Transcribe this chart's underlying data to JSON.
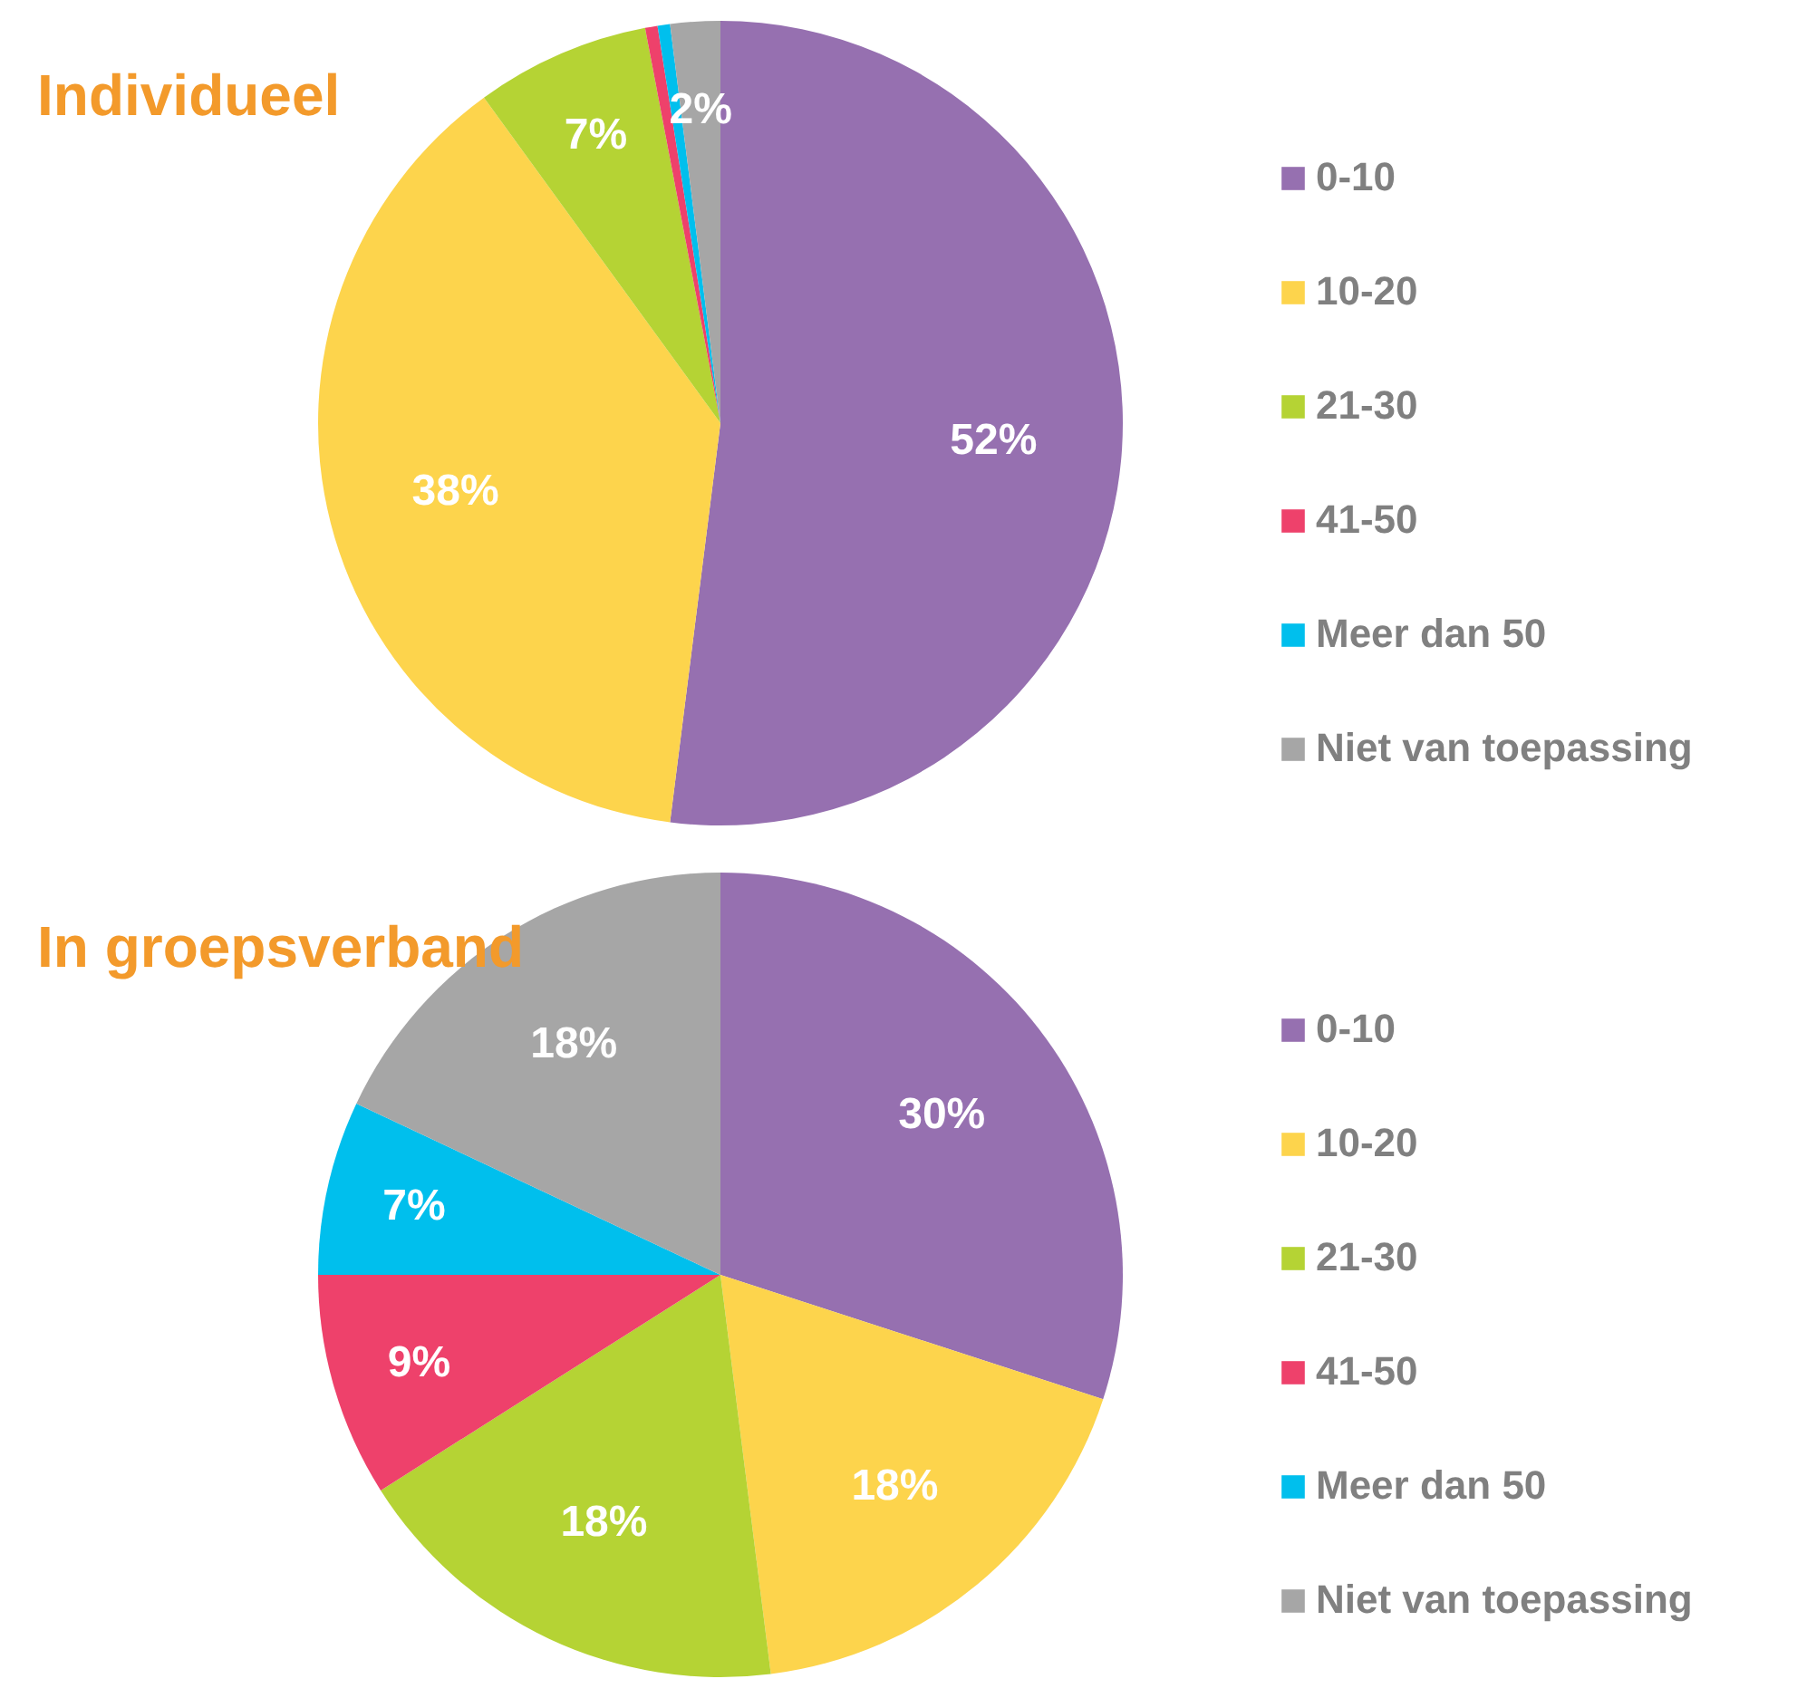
{
  "chart_data": [
    {
      "type": "pie",
      "title": "Individueel",
      "categories": [
        "0-10",
        "10-20",
        "21-30",
        "41-50",
        "Meer dan 50",
        "Niet van toepassing"
      ],
      "values": [
        52,
        38,
        7,
        0.5,
        0.5,
        2
      ],
      "value_labels": [
        "52%",
        "38%",
        "7%",
        null,
        null,
        "2%"
      ],
      "colors": [
        "#9670b0",
        "#fdd44c",
        "#b5d334",
        "#ee416b",
        "#00bfed",
        "#a6a6a6"
      ],
      "legend": "right"
    },
    {
      "type": "pie",
      "title": "In groepsverband",
      "categories": [
        "0-10",
        "10-20",
        "21-30",
        "41-50",
        "Meer dan 50",
        "Niet van toepassing"
      ],
      "values": [
        30,
        18,
        18,
        9,
        7,
        18
      ],
      "value_labels": [
        "30%",
        "18%",
        "18%",
        "9%",
        "7%",
        "18%"
      ],
      "colors": [
        "#9670b0",
        "#fdd44c",
        "#b5d334",
        "#ee416b",
        "#00bfed",
        "#a6a6a6"
      ],
      "legend": "right"
    }
  ]
}
